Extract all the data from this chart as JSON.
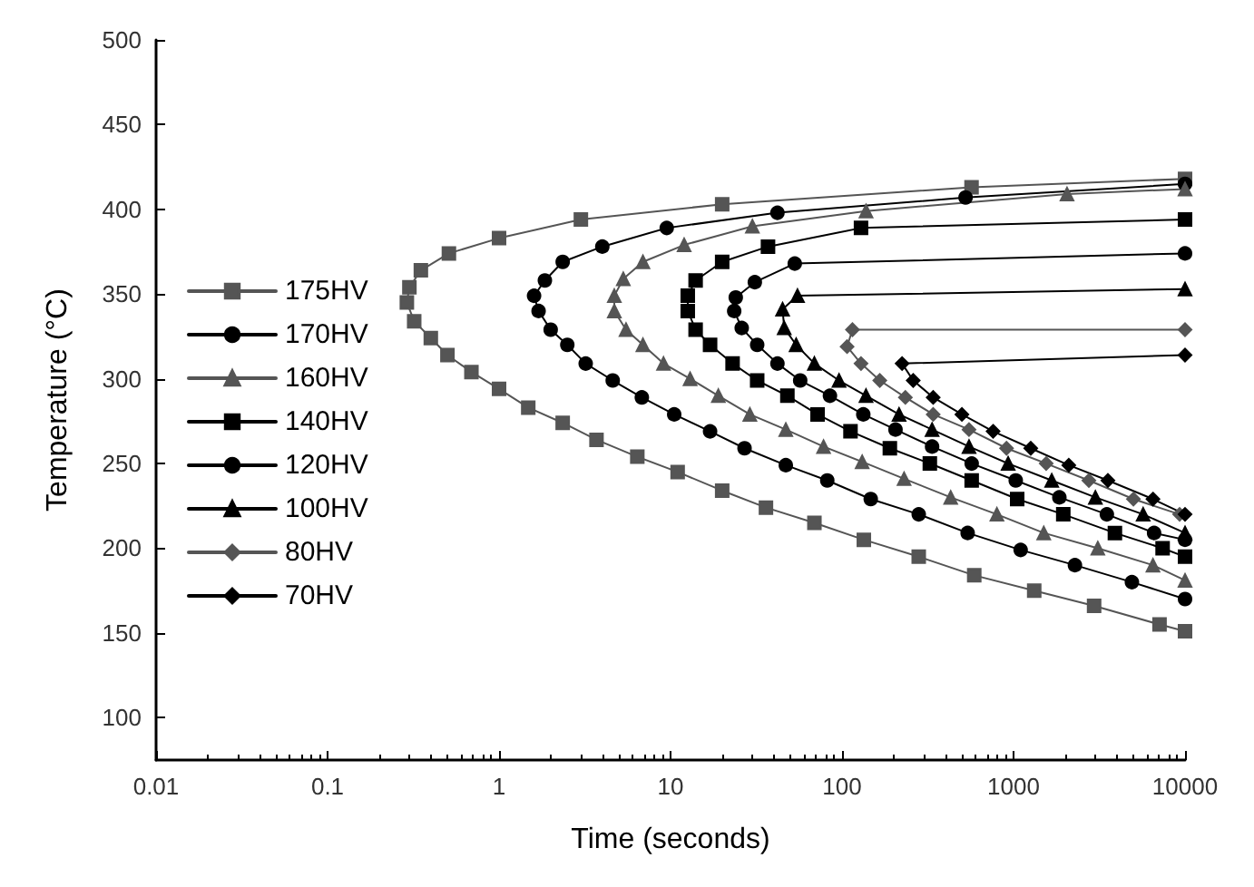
{
  "chart_data": {
    "type": "line",
    "xlabel": "Time (seconds)",
    "ylabel": "Temperature (°C)",
    "log": "x",
    "xlim": [
      0.01,
      10000
    ],
    "xticks": [
      0.01,
      0.1,
      1,
      10,
      100,
      1000,
      10000
    ],
    "ylim": [
      75,
      500
    ],
    "yticks": [
      100,
      150,
      200,
      250,
      300,
      350,
      400,
      450,
      500
    ],
    "grid": false,
    "legend": "left",
    "line_style": "solid",
    "series": [
      {
        "name": "175HV",
        "color": "#555555",
        "marker": "square",
        "x": [
          10000,
          569,
          20,
          3,
          1,
          0.51,
          0.35,
          0.3,
          0.29,
          0.32,
          0.4,
          0.5,
          0.69,
          1,
          1.48,
          2.35,
          3.7,
          6.4,
          11,
          20,
          36,
          69,
          134,
          280,
          590,
          1320,
          2950,
          7100,
          10000
        ],
        "values": [
          418,
          413,
          403,
          394,
          383,
          374,
          364,
          354,
          345,
          334,
          324,
          314,
          304,
          294,
          283,
          274,
          264,
          254,
          245,
          234,
          224,
          215,
          205,
          195,
          184,
          175,
          166,
          155,
          151
        ]
      },
      {
        "name": "170HV",
        "color": "#000000",
        "marker": "circle",
        "x": [
          10000,
          525,
          42,
          9.5,
          4,
          2.35,
          1.85,
          1.6,
          1.7,
          2,
          2.5,
          3.2,
          4.6,
          6.8,
          10.5,
          17,
          27,
          47,
          82,
          147,
          280,
          540,
          1100,
          2280,
          4900,
          10000
        ],
        "values": [
          415,
          407,
          398,
          389,
          378,
          369,
          358,
          349,
          340,
          329,
          320,
          309,
          299,
          289,
          279,
          269,
          259,
          249,
          240,
          229,
          220,
          209,
          199,
          190,
          180,
          170
        ]
      },
      {
        "name": "160HV",
        "color": "#555555",
        "marker": "triangle",
        "x": [
          10000,
          2050,
          138,
          30,
          12,
          6.9,
          5.3,
          4.7,
          4.7,
          5.5,
          6.9,
          9.1,
          13,
          19,
          29,
          47,
          78,
          131,
          230,
          430,
          800,
          1500,
          3100,
          6500,
          10000
        ],
        "values": [
          412,
          409,
          399,
          390,
          379,
          369,
          359,
          349,
          340,
          329,
          320,
          309,
          300,
          290,
          279,
          270,
          260,
          251,
          241,
          230,
          220,
          209,
          200,
          190,
          181
        ]
      },
      {
        "name": "140HV",
        "color": "#000000",
        "marker": "square",
        "x": [
          10000,
          129,
          37,
          20,
          14,
          12.6,
          12.6,
          14,
          17,
          23,
          32,
          48,
          72,
          112,
          190,
          325,
          570,
          1050,
          1950,
          3900,
          7400,
          10000
        ],
        "values": [
          394,
          389,
          378,
          369,
          358,
          349,
          340,
          329,
          320,
          309,
          299,
          290,
          279,
          269,
          259,
          250,
          240,
          229,
          220,
          209,
          200,
          195
        ]
      },
      {
        "name": "120HV",
        "color": "#000000",
        "marker": "circle",
        "x": [
          10000,
          53,
          31,
          24,
          23.5,
          26,
          32,
          42,
          57,
          85,
          133,
          205,
          335,
          570,
          1030,
          1850,
          3500,
          6600,
          10000
        ],
        "values": [
          374,
          368,
          357,
          348,
          340,
          330,
          320,
          309,
          299,
          290,
          279,
          270,
          260,
          250,
          240,
          230,
          220,
          209,
          205
        ]
      },
      {
        "name": "100HV",
        "color": "#000000",
        "marker": "triangle",
        "x": [
          10000,
          55,
          45,
          46,
          54,
          69,
          96,
          138,
          215,
          335,
          550,
          930,
          1670,
          3000,
          5700,
          10000
        ],
        "values": [
          353,
          349,
          341,
          330,
          320,
          309,
          299,
          290,
          279,
          270,
          260,
          250,
          240,
          230,
          220,
          209
        ]
      },
      {
        "name": "80HV",
        "color": "#555555",
        "marker": "diamond",
        "x": [
          10000,
          115,
          107,
          129,
          166,
          234,
          340,
          550,
          910,
          1550,
          2750,
          5000,
          9300
        ],
        "values": [
          329,
          329,
          319,
          309,
          299,
          289,
          279,
          270,
          259,
          250,
          240,
          229,
          220
        ]
      },
      {
        "name": "70HV",
        "color": "#000000",
        "marker": "diamond",
        "x": [
          10000,
          224,
          260,
          340,
          500,
          760,
          1260,
          2100,
          3550,
          6500,
          10000
        ],
        "values": [
          314,
          309,
          299,
          289,
          279,
          269,
          259,
          249,
          240,
          229,
          220
        ]
      }
    ]
  }
}
